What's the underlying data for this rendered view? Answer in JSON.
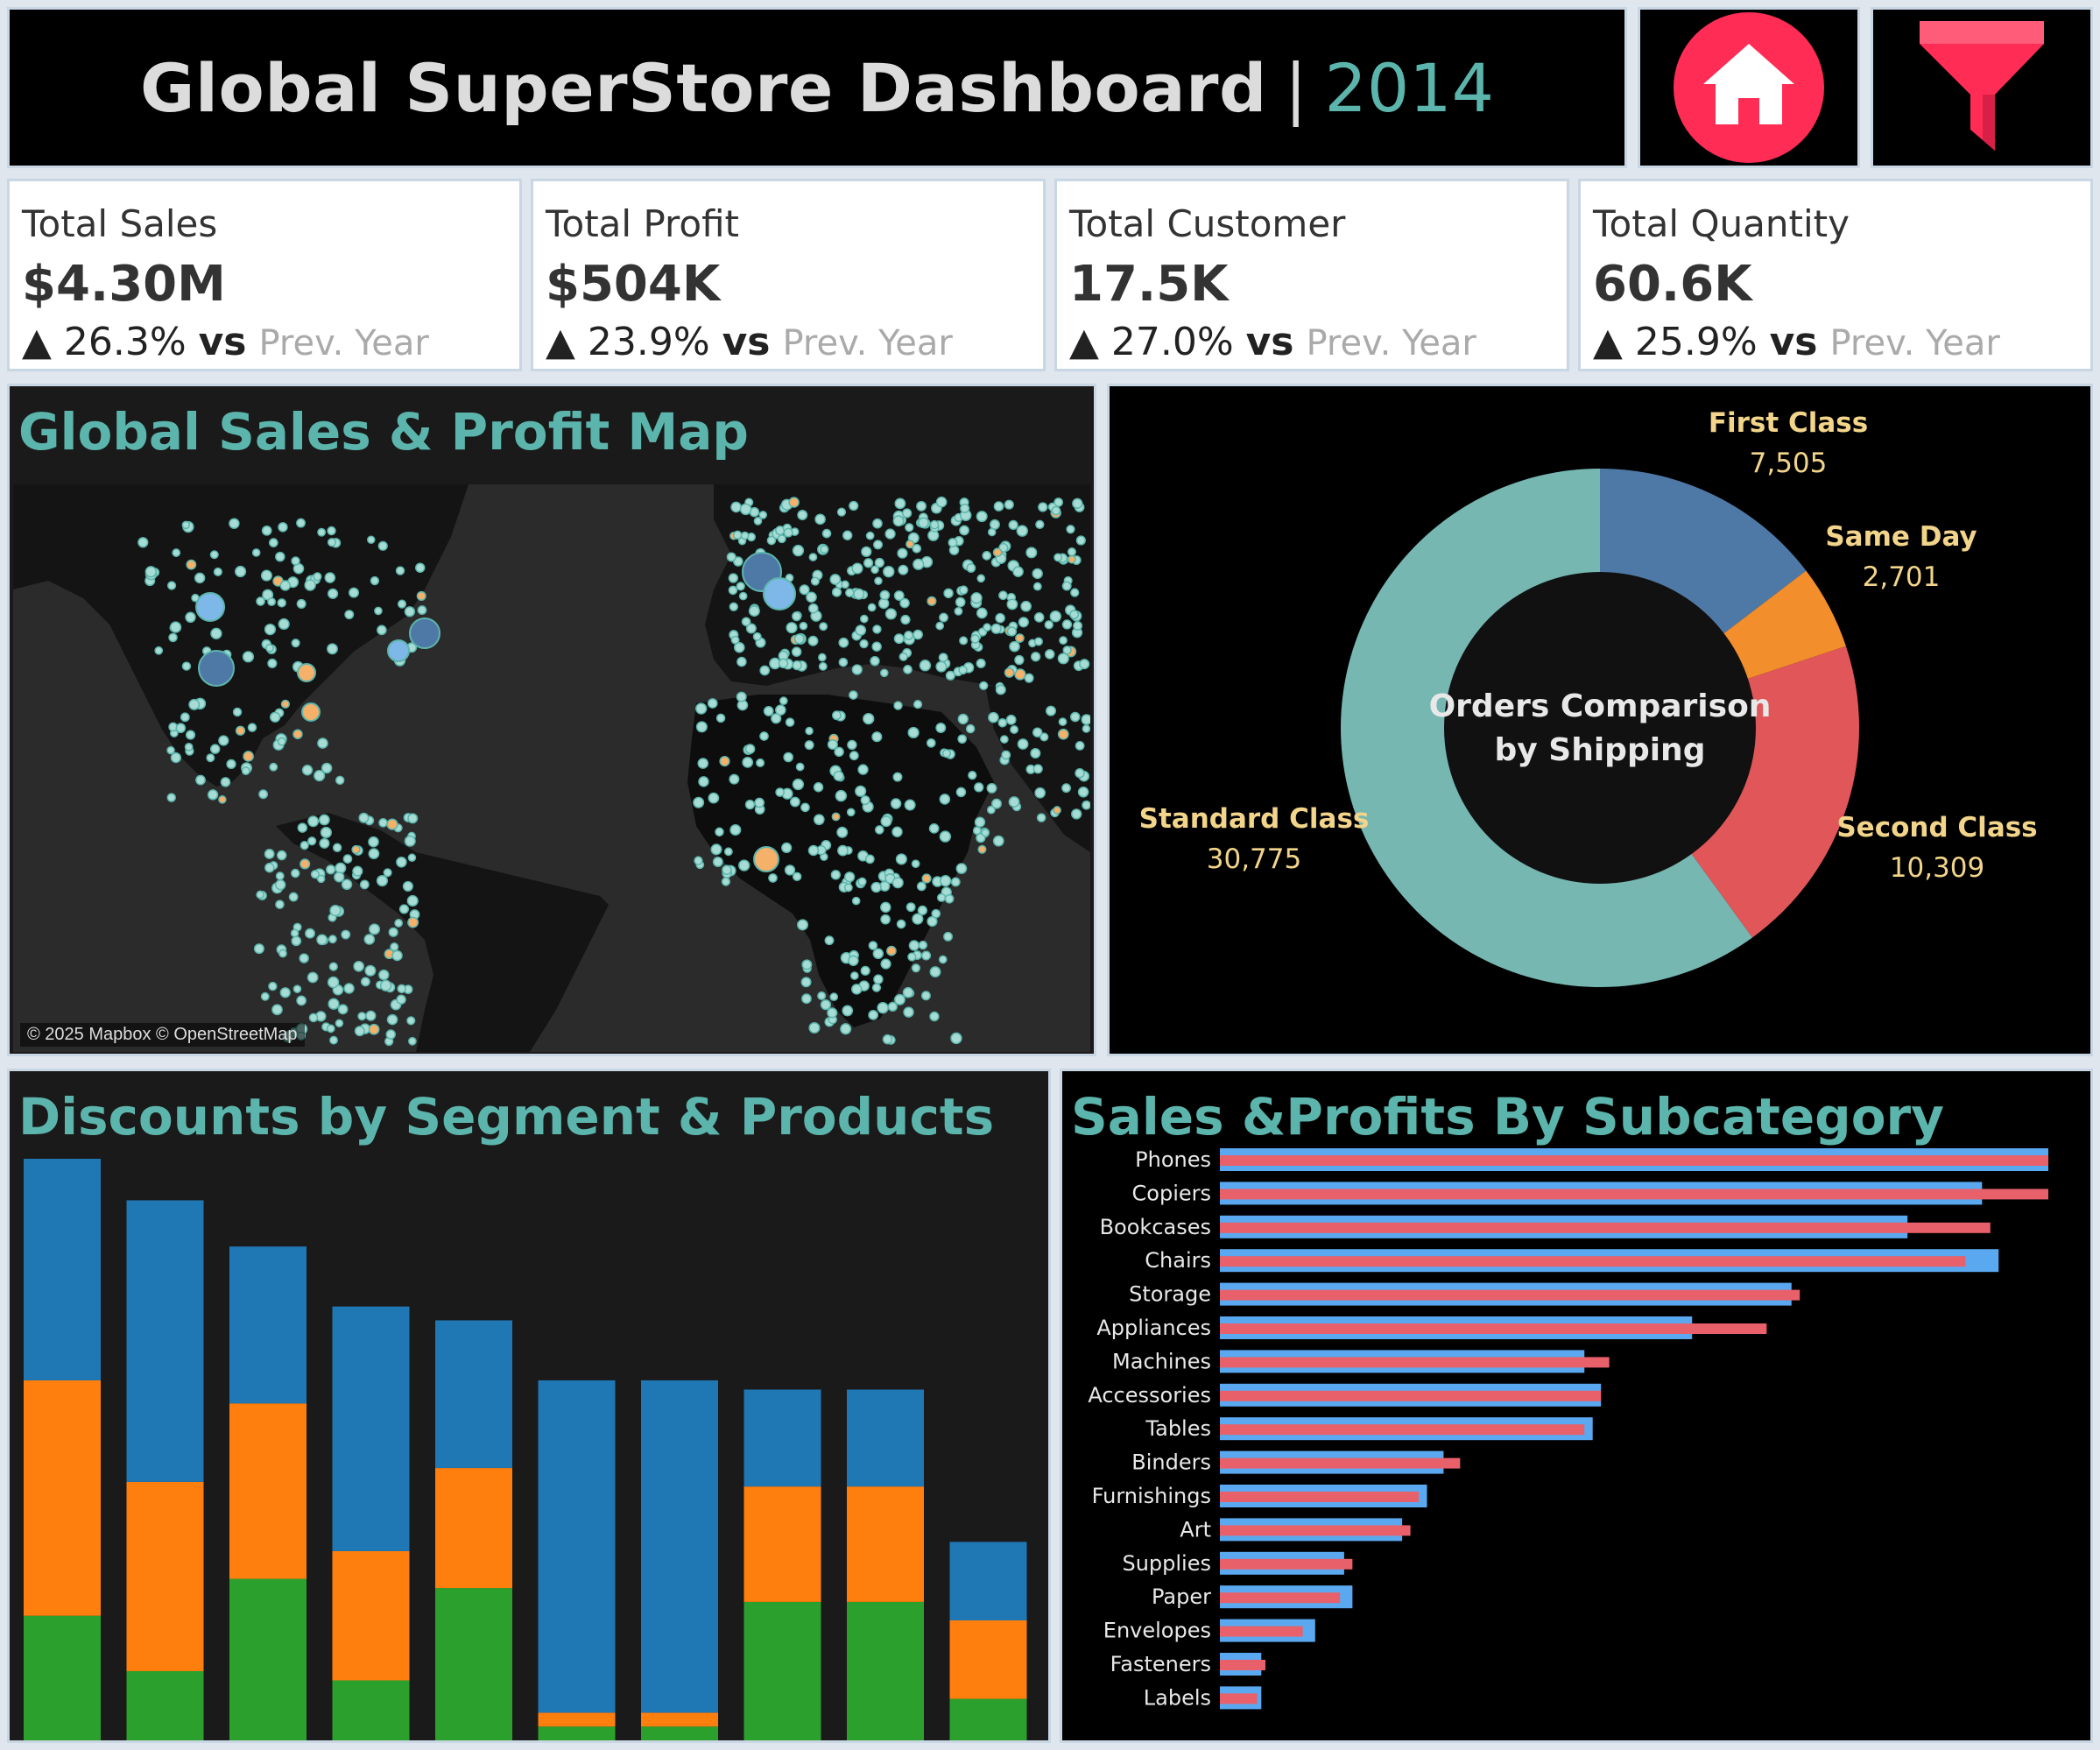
{
  "header": {
    "title": "Global SuperStore Dashboard",
    "separator": "|",
    "year": "2014",
    "home_icon": "home-icon",
    "filter_icon": "funnel-icon",
    "accent_color": "#5cb5ac",
    "icon_color": "#ff2d55"
  },
  "kpis": [
    {
      "label": "Total Sales",
      "value": "$4.30M",
      "delta": "26.3%",
      "vs": "vs",
      "prev": "Prev. Year"
    },
    {
      "label": "Total Profit",
      "value": "$504K",
      "delta": "23.9%",
      "vs": "vs",
      "prev": "Prev. Year"
    },
    {
      "label": "Total Customer",
      "value": "17.5K",
      "delta": "27.0%",
      "vs": "vs",
      "prev": "Prev. Year"
    },
    {
      "label": "Total Quantity",
      "value": "60.6K",
      "delta": "25.9%",
      "vs": "vs",
      "prev": "Prev. Year"
    }
  ],
  "map": {
    "title": "Global Sales & Profit Map",
    "credit": "© 2025 Mapbox © OpenStreetMap"
  },
  "chart_data": [
    {
      "type": "pie",
      "title": "Orders Comparison by Shipping",
      "title_lines": [
        "Orders Comparison",
        "by Shipping"
      ],
      "slices": [
        {
          "name": "First Class",
          "value": 7505,
          "label": "7,505",
          "color": "#4e79a7"
        },
        {
          "name": "Same Day",
          "value": 2701,
          "label": "2,701",
          "color": "#f28e2b"
        },
        {
          "name": "Second Class",
          "value": 10309,
          "label": "10,309",
          "color": "#e15759"
        },
        {
          "name": "Standard Class",
          "value": 30775,
          "label": "30,775",
          "color": "#76b7b2"
        }
      ]
    },
    {
      "type": "bar",
      "title": "Discounts by Segment & Products",
      "stacked": true,
      "colors": [
        "#2ca02c",
        "#ff7f0e",
        "#1f77b4"
      ],
      "series": [
        {
          "values": [
            27,
            15,
            35,
            13,
            33,
            3,
            3,
            30,
            30,
            9
          ]
        },
        {
          "values": [
            51,
            41,
            38,
            28,
            26,
            3,
            3,
            25,
            25,
            17
          ]
        },
        {
          "values": [
            48,
            61,
            34,
            53,
            32,
            72,
            72,
            21,
            21,
            17
          ]
        }
      ],
      "ylim": [
        0,
        126
      ]
    },
    {
      "type": "bar",
      "orientation": "horizontal",
      "title": "Sales &Profits By Subcategory",
      "categories": [
        "Phones",
        "Copiers",
        "Bookcases",
        "Chairs",
        "Storage",
        "Appliances",
        "Machines",
        "Accessories",
        "Tables",
        "Binders",
        "Furnishings",
        "Art",
        "Supplies",
        "Paper",
        "Envelopes",
        "Fasteners",
        "Labels"
      ],
      "series": [
        {
          "color": "#5aa9f0",
          "values": [
            100,
            92,
            83,
            94,
            69,
            57,
            44,
            46,
            45,
            27,
            25,
            22,
            15,
            16,
            11.5,
            5,
            5
          ]
        },
        {
          "color": "#e8606a",
          "values": [
            100,
            100,
            93,
            90,
            70,
            66,
            47,
            46,
            44,
            29,
            24,
            23,
            16,
            14.5,
            10,
            5.5,
            4.5
          ]
        }
      ],
      "xlim": [
        0,
        100
      ]
    }
  ]
}
